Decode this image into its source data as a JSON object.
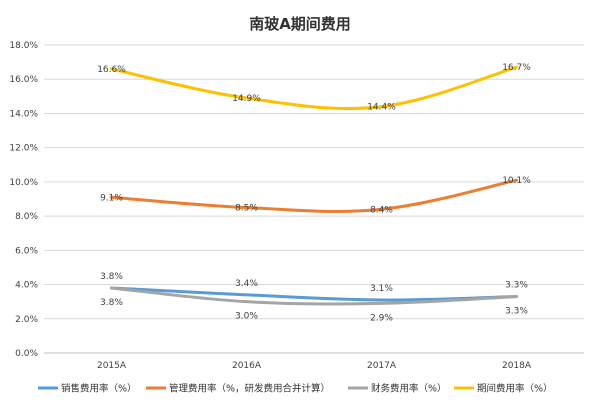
{
  "chart_data": {
    "type": "line",
    "title": "南玻A期间费用",
    "categories": [
      "2015A",
      "2016A",
      "2017A",
      "2018A"
    ],
    "y_tick_labels": [
      "0.0%",
      "2.0%",
      "4.0%",
      "6.0%",
      "8.0%",
      "10.0%",
      "12.0%",
      "14.0%",
      "16.0%",
      "18.0%"
    ],
    "ylim": [
      0,
      18
    ],
    "grid": true,
    "legend_position": "bottom",
    "series": [
      {
        "name": "销售费用率（%）",
        "color": "#5b9bd5",
        "values": [
          3.8,
          3.4,
          3.1,
          3.3
        ],
        "labels": [
          "3.8%",
          "3.4%",
          "3.1%",
          "3.3%"
        ],
        "label_side": "above"
      },
      {
        "name": "管理费用率（%，研发费用合并计算）",
        "color": "#ed7d31",
        "values": [
          9.1,
          8.5,
          8.4,
          10.1
        ],
        "labels": [
          "9.1%",
          "8.5%",
          "8.4%",
          "10.1%"
        ],
        "label_side": "center"
      },
      {
        "name": "财务费用率（%）",
        "color": "#a5a5a5",
        "values": [
          3.8,
          3.0,
          2.9,
          3.3
        ],
        "labels": [
          "3.8%",
          "3.0%",
          "2.9%",
          "3.3%"
        ],
        "label_side": "below"
      },
      {
        "name": "期间费用率（%）",
        "color": "#ffc000",
        "values": [
          16.6,
          14.9,
          14.4,
          16.7
        ],
        "labels": [
          "16.6%",
          "14.9%",
          "14.4%",
          "16.7%"
        ],
        "label_side": "center"
      }
    ]
  }
}
